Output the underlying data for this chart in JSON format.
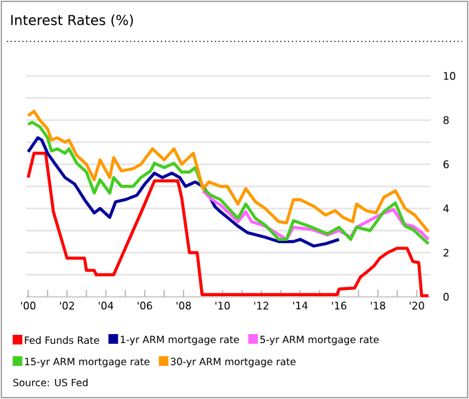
{
  "chart_data": {
    "type": "line",
    "title": "Interest Rates (%)",
    "annotations": [
      "Source: US Fed"
    ],
    "legend": "bottom",
    "grid": "y",
    "xlim": [
      1999.9,
      2020.7
    ],
    "ylim": [
      0,
      10
    ],
    "xticks": [
      {
        "value": 2000,
        "label": "'00"
      },
      {
        "value": 2001,
        "label": null
      },
      {
        "value": 2002,
        "label": "'02"
      },
      {
        "value": 2003,
        "label": null
      },
      {
        "value": 2004,
        "label": "'04"
      },
      {
        "value": 2005,
        "label": null
      },
      {
        "value": 2006,
        "label": "'06"
      },
      {
        "value": 2007,
        "label": null
      },
      {
        "value": 2008,
        "label": "'08"
      },
      {
        "value": 2009,
        "label": null
      },
      {
        "value": 2010,
        "label": "'10"
      },
      {
        "value": 2011,
        "label": null
      },
      {
        "value": 2012,
        "label": "'12"
      },
      {
        "value": 2013,
        "label": null
      },
      {
        "value": 2014,
        "label": "'14"
      },
      {
        "value": 2015,
        "label": null
      },
      {
        "value": 2016,
        "label": "'16"
      },
      {
        "value": 2017,
        "label": null
      },
      {
        "value": 2018,
        "label": "'18"
      },
      {
        "value": 2019,
        "label": null
      },
      {
        "value": 2020,
        "label": "'20"
      }
    ],
    "yticks": [
      0,
      {
        "value": 1,
        "label": null
      },
      2,
      {
        "value": 3,
        "label": null
      },
      4,
      {
        "value": 5,
        "label": null
      },
      6,
      {
        "value": 7,
        "label": null
      },
      8,
      {
        "value": 9,
        "label": null
      },
      10
    ],
    "series": [
      {
        "name": "Fed Funds Rate",
        "color": "#ff0000",
        "x": [
          2000.0,
          2000.3,
          2000.9,
          2001.3,
          2002.0,
          2002.9,
          2003.0,
          2003.4,
          2003.5,
          2004.4,
          2004.7,
          2005.4,
          2005.9,
          2006.5,
          2007.7,
          2007.9,
          2008.3,
          2008.7,
          2008.95,
          2015.9,
          2016.0,
          2016.8,
          2017.1,
          2017.4,
          2017.8,
          2018.1,
          2018.5,
          2019.0,
          2019.5,
          2019.8,
          2020.1,
          2020.25,
          2020.6
        ],
        "values": [
          5.4,
          6.5,
          6.5,
          3.85,
          1.75,
          1.75,
          1.2,
          1.2,
          1.0,
          1.0,
          1.6,
          3.0,
          4.0,
          5.25,
          5.25,
          4.5,
          2.0,
          2.0,
          0.1,
          0.1,
          0.35,
          0.4,
          0.9,
          1.1,
          1.4,
          1.75,
          2.0,
          2.2,
          2.2,
          1.6,
          1.55,
          0.05,
          0.05
        ]
      },
      {
        "name": "1-yr ARM mortgage rate",
        "color": "#000099",
        "x": [
          2000.0,
          2000.5,
          2000.7,
          2001.0,
          2001.4,
          2001.9,
          2002.4,
          2002.9,
          2003.4,
          2003.7,
          2004.2,
          2004.5,
          2005.0,
          2005.6,
          2006.0,
          2006.5,
          2006.9,
          2007.4,
          2007.8,
          2008.1,
          2008.6,
          2009.0,
          2009.3,
          2009.6,
          2009.9,
          2010.8,
          2011.3,
          2012.2,
          2012.9,
          2013.65,
          2014.0,
          2014.7,
          2015.3,
          2016.0
        ],
        "values": [
          6.56,
          7.2,
          7.1,
          6.5,
          6.0,
          5.4,
          5.1,
          4.4,
          3.8,
          4.0,
          3.6,
          4.3,
          4.4,
          4.6,
          5.1,
          5.6,
          5.4,
          5.6,
          5.4,
          5.0,
          5.2,
          5.0,
          4.6,
          4.1,
          3.85,
          3.2,
          2.9,
          2.7,
          2.5,
          2.5,
          2.6,
          2.3,
          2.4,
          2.6
        ]
      },
      {
        "name": "5-yr ARM mortgage rate",
        "color": "#ff66ff",
        "x": [
          2009.0,
          2009.4,
          2009.9,
          2010.8,
          2011.2,
          2011.5,
          2012.2,
          2012.9,
          2013.3,
          2013.65,
          2014.6,
          2015.4,
          2016.0,
          2016.6,
          2016.9,
          2017.6,
          2018.2,
          2018.8,
          2019.3,
          2019.8,
          2020.2,
          2020.6
        ],
        "values": [
          4.8,
          4.45,
          4.15,
          3.4,
          3.85,
          3.4,
          3.2,
          null,
          2.6,
          3.15,
          3.05,
          2.8,
          3.0,
          2.7,
          3.15,
          null,
          3.75,
          3.95,
          3.3,
          3.2,
          2.95,
          2.6
        ]
      },
      {
        "name": "15-yr ARM mortgage rate",
        "color": "#44cc22",
        "x": [
          2000.0,
          2000.2,
          2000.6,
          2001.0,
          2001.2,
          2001.5,
          2001.9,
          2002.1,
          2002.5,
          2003.0,
          2003.4,
          2003.7,
          2004.2,
          2004.4,
          2004.8,
          2005.4,
          2005.8,
          2006.3,
          2006.5,
          2007.0,
          2007.5,
          2007.9,
          2008.3,
          2008.6,
          2009.0,
          2009.4,
          2009.9,
          2010.8,
          2011.2,
          2011.7,
          2012.2,
          2012.9,
          2013.3,
          2013.65,
          2014.6,
          2015.4,
          2016.0,
          2016.6,
          2016.9,
          2017.6,
          2018.3,
          2018.9,
          2019.4,
          2019.8,
          2020.6
        ],
        "values": [
          7.8,
          7.9,
          7.7,
          7.2,
          6.6,
          6.7,
          6.5,
          6.7,
          6.05,
          5.65,
          4.7,
          5.3,
          4.7,
          5.4,
          5.0,
          5.0,
          5.4,
          5.7,
          6.05,
          5.85,
          6.05,
          5.65,
          5.65,
          5.85,
          4.9,
          4.6,
          4.4,
          3.55,
          4.2,
          3.55,
          3.25,
          2.6,
          2.6,
          3.45,
          3.15,
          2.85,
          3.15,
          2.6,
          3.15,
          3.0,
          3.85,
          4.25,
          3.2,
          3.05,
          2.4
        ]
      },
      {
        "name": "30-yr ARM mortgage rate",
        "color": "#ff9900",
        "x": [
          2000.0,
          2000.3,
          2000.6,
          2001.0,
          2001.2,
          2001.5,
          2001.9,
          2002.1,
          2002.5,
          2003.0,
          2003.4,
          2003.7,
          2004.2,
          2004.4,
          2004.8,
          2005.4,
          2005.8,
          2006.4,
          2007.0,
          2007.5,
          2007.9,
          2008.5,
          2009.0,
          2009.3,
          2009.9,
          2010.25,
          2010.8,
          2011.2,
          2011.7,
          2012.2,
          2012.9,
          2013.3,
          2013.65,
          2014.0,
          2014.7,
          2015.3,
          2015.8,
          2016.2,
          2016.7,
          2016.9,
          2017.4,
          2017.9,
          2018.3,
          2018.9,
          2019.4,
          2019.9,
          2020.6
        ],
        "values": [
          8.2,
          8.4,
          8.0,
          7.6,
          7.1,
          7.2,
          7.0,
          7.1,
          6.4,
          6.0,
          5.3,
          6.2,
          5.4,
          6.3,
          5.7,
          5.8,
          6.0,
          6.7,
          6.2,
          6.7,
          6.0,
          6.5,
          4.9,
          5.2,
          5.0,
          5.0,
          4.2,
          4.9,
          4.3,
          4.0,
          3.4,
          3.35,
          4.4,
          4.4,
          4.1,
          3.7,
          3.9,
          3.6,
          3.4,
          4.2,
          3.9,
          3.8,
          4.5,
          4.8,
          4.0,
          3.7,
          2.95
        ]
      }
    ]
  }
}
